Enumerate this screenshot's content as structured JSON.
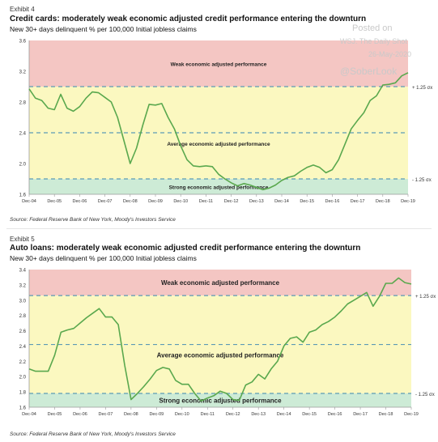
{
  "watermark": {
    "line1": "Posted on",
    "line2": "WSJ. The Daily Shot",
    "line3": "26-May-2020",
    "line4": "@SoberLook"
  },
  "charts": [
    {
      "exhibit": "Exhibit 4",
      "title": "Credit cards: moderately weak economic adjusted credit performance entering the downturn",
      "subtitle": "New 30+ days delinquent % per 100,000 Initial jobless claims",
      "source": "Source: Federal Reserve Bank of New York, Moody's Investors Service",
      "zone_labels": {
        "weak": "Weak economic adjusted performance",
        "average": "Average economic adjusted performance",
        "strong": "Strong economic adjusted performance"
      },
      "sigma_labels": {
        "upper": "+ 1.25 σx",
        "lower": "- 1.25 σx"
      }
    },
    {
      "exhibit": "Exhibit 5",
      "title": "Auto loans: moderately weak economic adjusted credit performance entering the downturn",
      "subtitle": "New 30+ days delinquent % per 100,000 Initial jobless claims",
      "source": "Source: Federal Reserve Bank of New York, Moody's Investors Service",
      "zone_labels": {
        "weak": "Weak economic adjusted performance",
        "average": "Average economic adjusted performance",
        "strong": "Strong economic adjusted performance"
      },
      "sigma_labels": {
        "upper": "+ 1.25 σx",
        "lower": "- 1.25 σx"
      }
    }
  ],
  "chart_data": [
    {
      "type": "line",
      "title": "Credit cards: moderately weak economic adjusted credit performance entering the downturn",
      "ylabel": "",
      "xlabel": "",
      "ylim": [
        1.6,
        3.6
      ],
      "yticks": [
        1.6,
        2.0,
        2.4,
        2.8,
        3.2,
        3.6
      ],
      "xticks": [
        "Dec-04",
        "Dec-05",
        "Dec-06",
        "Dec-07",
        "Dec-08",
        "Dec-09",
        "Dec-10",
        "Dec-11",
        "Dec-12",
        "Dec-13",
        "Dec-14",
        "Dec-15",
        "Dec-16",
        "Dec-17",
        "Dec-18",
        "Dec-19"
      ],
      "bands": {
        "upper": 3.0,
        "mean": 2.4,
        "lower": 1.8
      },
      "colors": {
        "weak": "#f4c6c3",
        "average": "#fbf8c0",
        "strong": "#cdebd6",
        "line": "#5aa84e",
        "dashed": "#5b9bb5"
      },
      "x": [
        0,
        0.25,
        0.5,
        0.75,
        1,
        1.25,
        1.5,
        1.75,
        2,
        2.25,
        2.5,
        2.75,
        3,
        3.25,
        3.5,
        3.75,
        4,
        4.25,
        4.5,
        4.75,
        5,
        5.25,
        5.5,
        5.75,
        6,
        6.25,
        6.5,
        6.75,
        7,
        7.25,
        7.5,
        7.75,
        8,
        8.25,
        8.5,
        8.75,
        9,
        9.25,
        9.5,
        9.75,
        10,
        10.25,
        10.5,
        10.75,
        11,
        11.25,
        11.5,
        11.75,
        12,
        12.25,
        12.5,
        12.75,
        13,
        13.25,
        13.5,
        13.75,
        14,
        14.25,
        14.5,
        14.75,
        15
      ],
      "values": [
        2.97,
        2.85,
        2.82,
        2.72,
        2.7,
        2.9,
        2.72,
        2.68,
        2.74,
        2.85,
        2.93,
        2.92,
        2.86,
        2.8,
        2.6,
        2.3,
        2.0,
        2.2,
        2.5,
        2.77,
        2.76,
        2.78,
        2.6,
        2.45,
        2.23,
        2.05,
        1.97,
        1.96,
        1.97,
        1.96,
        1.86,
        1.8,
        1.75,
        1.71,
        1.74,
        1.72,
        1.69,
        1.66,
        1.68,
        1.72,
        1.78,
        1.82,
        1.84,
        1.9,
        1.95,
        1.98,
        1.95,
        1.88,
        1.92,
        2.05,
        2.25,
        2.45,
        2.56,
        2.66,
        2.82,
        2.88,
        3.02,
        3.03,
        3.05,
        3.14,
        3.18
      ]
    },
    {
      "type": "line",
      "title": "Auto loans: moderately weak economic adjusted credit performance entering the downturn",
      "ylabel": "",
      "xlabel": "",
      "ylim": [
        1.6,
        3.4
      ],
      "yticks": [
        1.6,
        1.8,
        2.0,
        2.2,
        2.4,
        2.6,
        2.8,
        3.0,
        3.2,
        3.4
      ],
      "xticks": [
        "Dec-04",
        "Dec-05",
        "Dec-06",
        "Dec-07",
        "Dec-08",
        "Dec-09",
        "Dec-10",
        "Dec-11",
        "Dec-12",
        "Dec-13",
        "Dec-14",
        "Dec-15",
        "Dec-16",
        "Dec-17",
        "Dec-18",
        "Dec-19"
      ],
      "bands": {
        "upper": 3.06,
        "mean": 2.42,
        "lower": 1.78
      },
      "colors": {
        "weak": "#f4c6c3",
        "average": "#fbf8c0",
        "strong": "#cdebd6",
        "line": "#5aa84e",
        "dashed": "#5b9bb5"
      },
      "x": [
        0,
        0.25,
        0.5,
        0.75,
        1,
        1.25,
        1.5,
        1.75,
        2,
        2.25,
        2.5,
        2.75,
        3,
        3.25,
        3.5,
        3.75,
        4,
        4.25,
        4.5,
        4.75,
        5,
        5.25,
        5.5,
        5.75,
        6,
        6.25,
        6.5,
        6.75,
        7,
        7.25,
        7.5,
        7.75,
        8,
        8.25,
        8.5,
        8.75,
        9,
        9.25,
        9.5,
        9.75,
        10,
        10.25,
        10.5,
        10.75,
        11,
        11.25,
        11.5,
        11.75,
        12,
        12.25,
        12.5,
        12.75,
        13,
        13.25,
        13.5,
        13.75,
        14,
        14.25,
        14.5,
        14.75,
        15
      ],
      "values": [
        2.1,
        2.07,
        2.07,
        2.07,
        2.28,
        2.58,
        2.61,
        2.63,
        2.7,
        2.77,
        2.83,
        2.89,
        2.78,
        2.78,
        2.68,
        2.15,
        1.7,
        1.78,
        1.87,
        1.97,
        2.08,
        2.12,
        2.1,
        1.95,
        1.9,
        1.9,
        1.78,
        1.68,
        1.72,
        1.75,
        1.81,
        1.78,
        1.7,
        1.69,
        1.89,
        1.93,
        2.03,
        1.97,
        2.1,
        2.2,
        2.4,
        2.5,
        2.52,
        2.45,
        2.58,
        2.61,
        2.68,
        2.72,
        2.78,
        2.86,
        2.95,
        3.0,
        3.05,
        3.1,
        2.92,
        3.05,
        3.22,
        3.22,
        3.29,
        3.23,
        3.21
      ]
    }
  ]
}
